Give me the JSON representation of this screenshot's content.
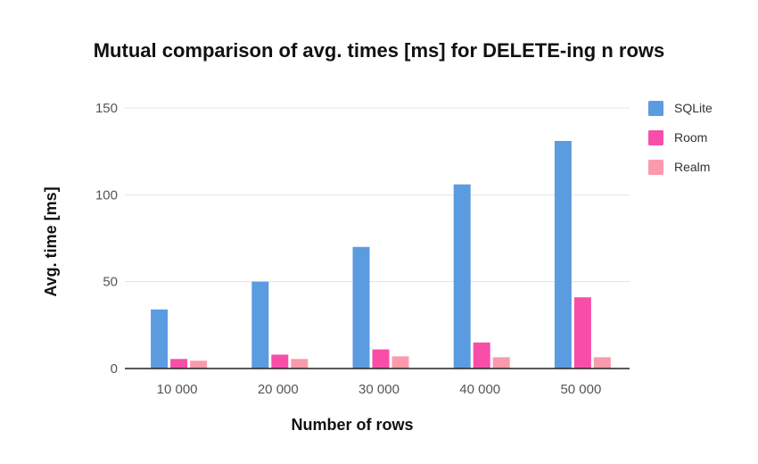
{
  "chart_data": {
    "type": "bar",
    "title": "Mutual comparison of avg. times [ms] for DELETE-ing n rows",
    "xlabel": "Number of rows",
    "ylabel": "Avg. time [ms]",
    "categories": [
      "10 000",
      "20 000",
      "30 000",
      "40 000",
      "50 000"
    ],
    "series": [
      {
        "name": "SQLite",
        "color": "#5b9bdf",
        "values": [
          34,
          50,
          70,
          106,
          131
        ]
      },
      {
        "name": "Room",
        "color": "#f84ea8",
        "values": [
          5.5,
          8,
          11,
          15,
          41
        ]
      },
      {
        "name": "Realm",
        "color": "#fb9aac",
        "values": [
          4.5,
          5.5,
          7,
          6.5,
          6.5
        ]
      }
    ],
    "ylim": [
      0,
      150
    ],
    "yticks": [
      0,
      50,
      100,
      150
    ],
    "grid": true,
    "legend_position": "right"
  }
}
